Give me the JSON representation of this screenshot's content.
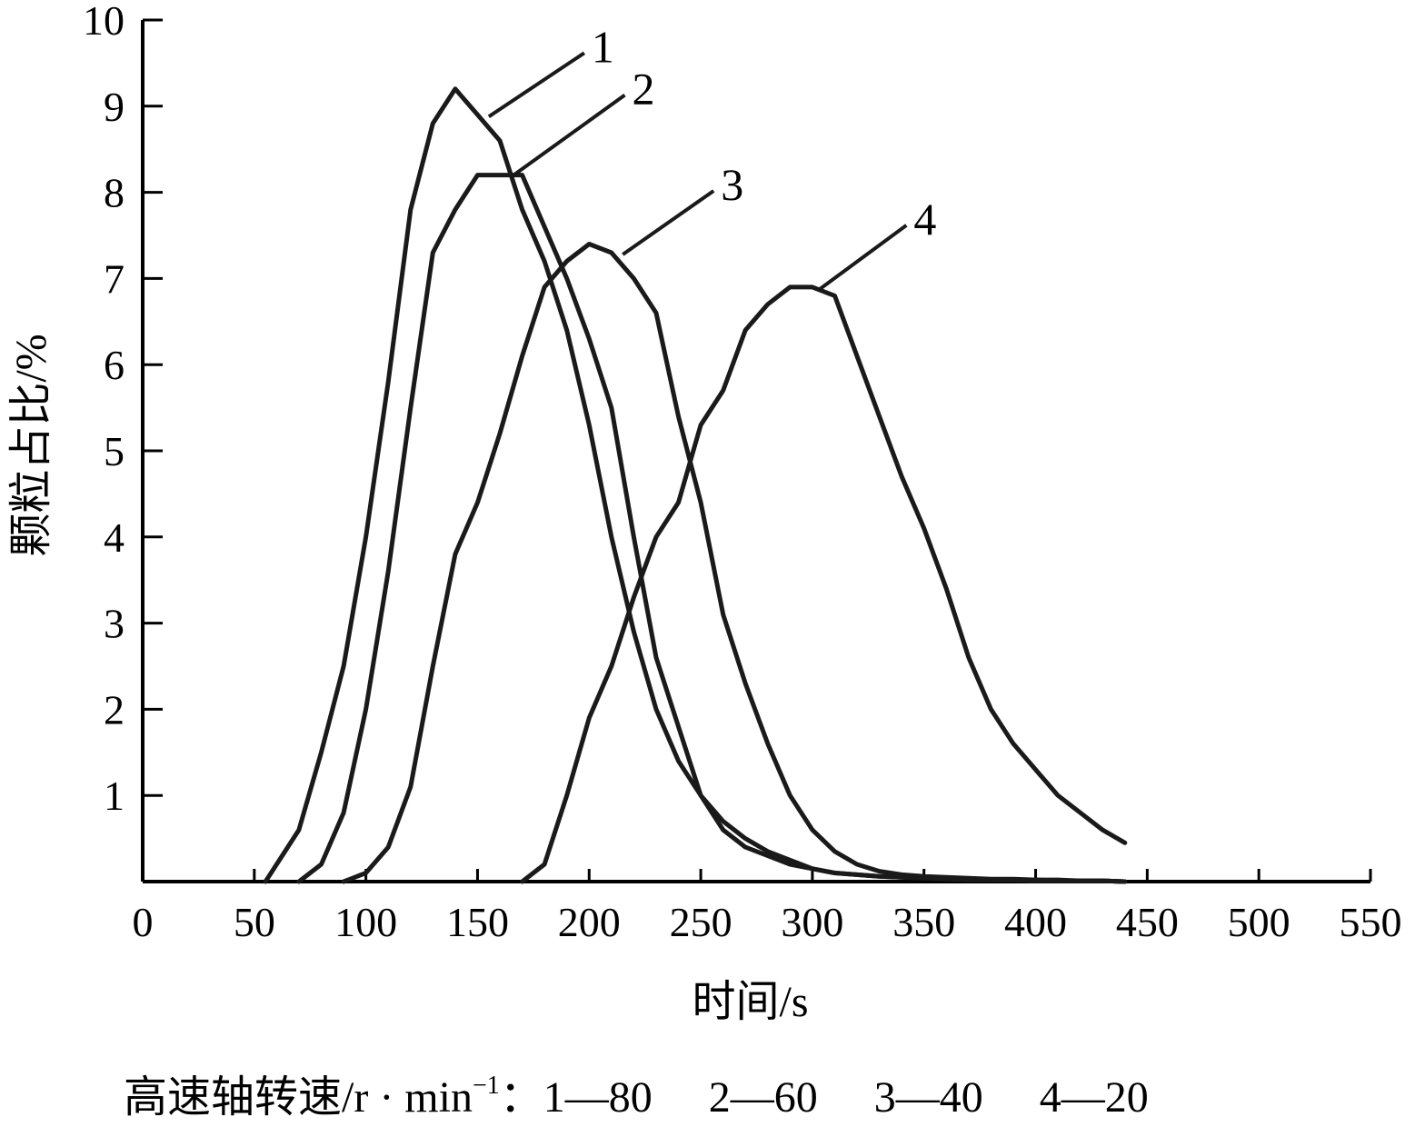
{
  "chart_data": {
    "type": "line",
    "xlabel": "时间/s",
    "ylabel": "颗粒占比/%",
    "xlim": [
      0,
      550
    ],
    "ylim": [
      0,
      10
    ],
    "x_ticks": [
      "0",
      "50",
      "100",
      "150",
      "200",
      "250",
      "300",
      "350",
      "400",
      "450",
      "500",
      "550"
    ],
    "y_ticks": [
      "1",
      "2",
      "3",
      "4",
      "5",
      "6",
      "7",
      "8",
      "9",
      "10"
    ],
    "grid": false,
    "legend": {
      "prefix": "高速轴转速/r · min",
      "superscript": "−1",
      "suffix": "：",
      "entries": [
        "1—80",
        "2—60",
        "3—40",
        "4—20"
      ]
    },
    "series": [
      {
        "name": "1",
        "x": [
          55,
          60,
          70,
          80,
          90,
          100,
          110,
          120,
          130,
          140,
          150,
          160,
          170,
          180,
          190,
          200,
          210,
          220,
          230,
          240,
          250,
          260,
          270,
          280,
          290,
          300,
          310,
          320,
          330,
          340,
          350,
          360,
          370,
          380,
          390,
          400,
          410,
          420,
          430,
          440
        ],
        "y": [
          0,
          0.2,
          0.6,
          1.5,
          2.5,
          4.0,
          5.8,
          7.8,
          8.8,
          9.2,
          8.9,
          8.6,
          7.8,
          7.2,
          6.4,
          5.3,
          4.0,
          2.9,
          2.0,
          1.4,
          1.0,
          0.6,
          0.4,
          0.3,
          0.2,
          0.15,
          0.1,
          0.08,
          0.06,
          0.05,
          0.04,
          0.03,
          0.02,
          0.02,
          0.02,
          0.01,
          0.01,
          0.01,
          0.01,
          0
        ]
      },
      {
        "name": "2",
        "x": [
          70,
          80,
          90,
          100,
          110,
          120,
          130,
          140,
          150,
          160,
          170,
          180,
          190,
          200,
          210,
          220,
          230,
          240,
          250,
          260,
          270,
          280,
          290,
          300,
          310,
          320,
          330,
          340,
          350,
          360,
          370,
          380,
          390,
          400,
          410,
          420,
          430,
          440
        ],
        "y": [
          0,
          0.2,
          0.8,
          2.0,
          3.6,
          5.5,
          7.3,
          7.8,
          8.2,
          8.2,
          8.2,
          7.6,
          7.0,
          6.3,
          5.5,
          4.0,
          2.6,
          1.8,
          1.0,
          0.7,
          0.5,
          0.35,
          0.25,
          0.15,
          0.1,
          0.08,
          0.06,
          0.05,
          0.04,
          0.03,
          0.03,
          0.02,
          0.02,
          0.02,
          0.01,
          0.01,
          0.01,
          0
        ]
      },
      {
        "name": "3",
        "x": [
          90,
          100,
          110,
          120,
          130,
          140,
          150,
          160,
          170,
          180,
          190,
          200,
          210,
          220,
          230,
          240,
          250,
          260,
          270,
          280,
          290,
          300,
          310,
          320,
          330,
          340,
          350,
          360,
          370,
          380,
          390,
          400,
          410,
          420,
          430,
          440
        ],
        "y": [
          0,
          0.1,
          0.4,
          1.1,
          2.5,
          3.8,
          4.4,
          5.2,
          6.1,
          6.9,
          7.2,
          7.4,
          7.3,
          7.0,
          6.6,
          5.4,
          4.4,
          3.1,
          2.3,
          1.6,
          1.0,
          0.6,
          0.35,
          0.2,
          0.12,
          0.08,
          0.06,
          0.05,
          0.04,
          0.03,
          0.03,
          0.02,
          0.02,
          0.01,
          0.01,
          0
        ]
      },
      {
        "name": "4",
        "x": [
          170,
          180,
          190,
          200,
          210,
          220,
          230,
          240,
          250,
          260,
          270,
          280,
          290,
          300,
          310,
          320,
          330,
          340,
          350,
          360,
          370,
          380,
          390,
          400,
          410,
          420,
          430,
          440
        ],
        "y": [
          0,
          0.2,
          1.0,
          1.9,
          2.5,
          3.3,
          4.0,
          4.4,
          5.3,
          5.7,
          6.4,
          6.7,
          6.9,
          6.9,
          6.8,
          6.1,
          5.4,
          4.7,
          4.1,
          3.4,
          2.6,
          2.0,
          1.6,
          1.3,
          1.0,
          0.8,
          0.6,
          0.45
        ]
      }
    ],
    "series_label_positions": [
      "top-right of peak",
      "top-right of peak",
      "top-right of peak",
      "top-right of peak"
    ]
  }
}
